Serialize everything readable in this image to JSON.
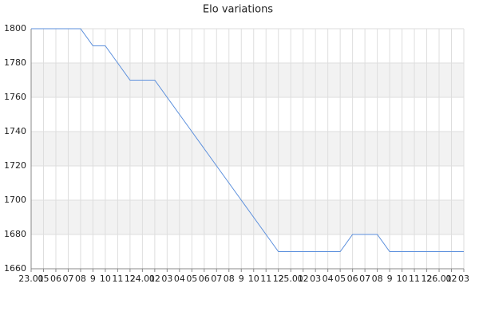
{
  "chart_data": {
    "type": "line",
    "title": "Elo variations",
    "categories": [
      "23.01",
      "05",
      "06",
      "07",
      "08",
      "9",
      "10",
      "11",
      "12",
      "24.01",
      "02",
      "03",
      "04",
      "05",
      "06",
      "07",
      "08",
      "9",
      "10",
      "11",
      "12",
      "25.01",
      "02",
      "03",
      "04",
      "05",
      "06",
      "07",
      "08",
      "9",
      "10",
      "11",
      "12",
      "26.01",
      "02",
      "03"
    ],
    "series": [
      {
        "name": "Elo",
        "color": "#5b8fdc",
        "values": [
          1800,
          1800,
          1800,
          1800,
          1800,
          1790,
          1790,
          1780,
          1770,
          1770,
          1770,
          1760,
          1750,
          1740,
          1730,
          1720,
          1710,
          1700,
          1690,
          1680,
          1670,
          1670,
          1670,
          1670,
          1670,
          1670,
          1680,
          1680,
          1680,
          1670,
          1670,
          1670,
          1670,
          1670,
          1670,
          1670
        ]
      }
    ],
    "ylim": [
      1660,
      1800
    ],
    "yticks": [
      1660,
      1680,
      1700,
      1720,
      1740,
      1760,
      1780,
      1800
    ],
    "grid": true,
    "band_color": "#f2f2f2"
  }
}
